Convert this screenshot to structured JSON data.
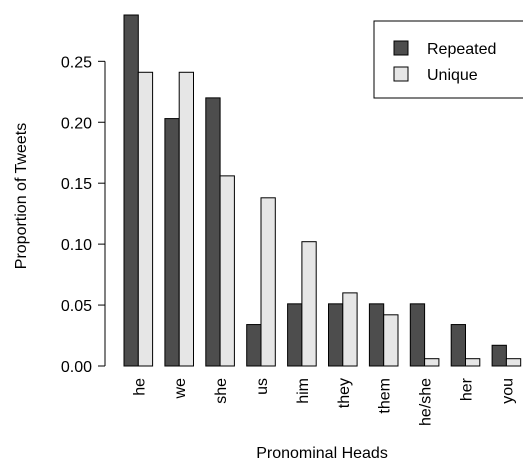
{
  "chart_data": {
    "type": "bar",
    "xlabel": "Pronominal Heads",
    "ylabel": "Proportion of Tweets",
    "categories": [
      "he",
      "we",
      "she",
      "us",
      "him",
      "they",
      "them",
      "he/she",
      "her",
      "you"
    ],
    "series": [
      {
        "name": "Repeated",
        "color": "#4d4d4d",
        "values": [
          0.288,
          0.203,
          0.22,
          0.034,
          0.051,
          0.051,
          0.051,
          0.051,
          0.034,
          0.017
        ]
      },
      {
        "name": "Unique",
        "color": "#e6e6e6",
        "values": [
          0.241,
          0.241,
          0.156,
          0.138,
          0.102,
          0.06,
          0.042,
          0.006,
          0.006,
          0.006
        ]
      }
    ],
    "yticks": [
      "0.00",
      "0.05",
      "0.10",
      "0.15",
      "0.20",
      "0.25"
    ],
    "ylim": [
      0,
      0.288
    ],
    "grid": false,
    "legend_position": "top-right"
  }
}
